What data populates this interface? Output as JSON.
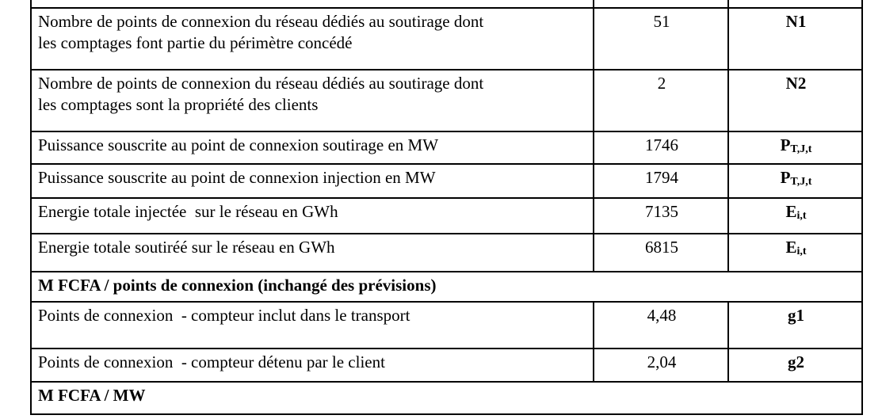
{
  "colors": {
    "text": "#000000",
    "background": "#ffffff",
    "border": "#000000"
  },
  "table": {
    "description_visible_columns": [
      "parameter",
      "value",
      "symbol"
    ],
    "rows": [
      {
        "type": "spacer"
      },
      {
        "type": "data",
        "label": "Nombre de points de connexion du réseau dédiés au soutirage dont\nles comptages font partie du périmètre concédé",
        "value": "51",
        "symbol": {
          "base": "N1",
          "sub": ""
        }
      },
      {
        "type": "data",
        "label": "Nombre de points de connexion du réseau dédiés au soutirage dont\nles comptages sont la propriété des clients",
        "value": "2",
        "symbol": {
          "base": "N2",
          "sub": ""
        }
      },
      {
        "type": "data",
        "label": "Puissance souscrite au point de connexion soutirage en MW",
        "value": "1746",
        "symbol": {
          "base": "P",
          "sub": "T,J,t"
        }
      },
      {
        "type": "data",
        "label": "Puissance souscrite au point de connexion injection en MW",
        "value": "1794",
        "symbol": {
          "base": "P",
          "sub": "T,J,t"
        }
      },
      {
        "type": "data",
        "label": "Energie totale injectée  sur le réseau en GWh",
        "value": "7135",
        "symbol": {
          "base": "E",
          "sub": "i,t"
        }
      },
      {
        "type": "data",
        "label": "Energie totale soutiréé sur le réseau en GWh",
        "value": "6815",
        "symbol": {
          "base": "E",
          "sub": "i,t"
        }
      },
      {
        "type": "section",
        "label": "M FCFA / points de connexion (inchangé des prévisions)"
      },
      {
        "type": "data",
        "label": "Points de connexion  - compteur inclut dans le transport",
        "value": "4,48",
        "symbol": {
          "base": "g1",
          "sub": ""
        }
      },
      {
        "type": "data",
        "label": "Points de connexion  - compteur détenu par le client",
        "value": "2,04",
        "symbol": {
          "base": "g2",
          "sub": ""
        }
      },
      {
        "type": "section",
        "label": "M FCFA / MW"
      }
    ]
  }
}
